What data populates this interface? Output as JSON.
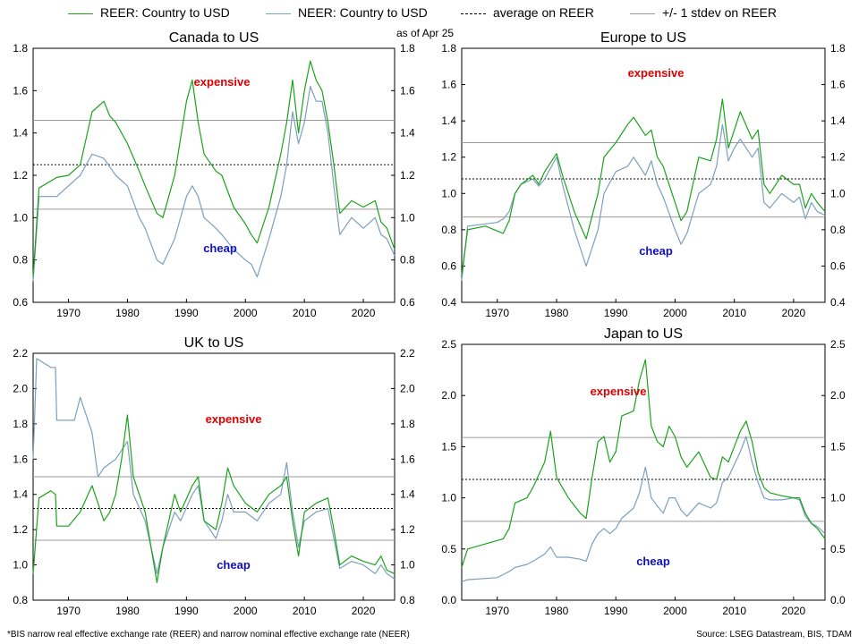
{
  "legend": {
    "items": [
      {
        "label": "REER: Country to USD",
        "color": "#1aa31a",
        "style": "solid"
      },
      {
        "label": "NEER: Country to USD",
        "color": "#7d9fbc",
        "style": "solid"
      },
      {
        "label": "average on REER",
        "color": "#000000",
        "style": "dashed"
      },
      {
        "label": "+/- 1 stdev on REER",
        "color": "#9a9a9a",
        "style": "solid"
      }
    ]
  },
  "annotations": {
    "as_of": "as of Apr 25",
    "expensive": "expensive",
    "cheap": "cheap"
  },
  "footer": {
    "note": "*BIS narrow real effective exchange rate (REER) and narrow nominal effective exchange rate (NEER)",
    "source": "Source: LSEG Datastream, BIS, TDAM"
  },
  "colors": {
    "reer": "#1aa31a",
    "neer": "#7d9fbc",
    "average": "#000000",
    "stdev": "#9a9a9a",
    "expensive": "#e00000",
    "cheap": "#1010c0"
  },
  "chart_data": [
    {
      "type": "line",
      "title": "Canada to US",
      "xlim": [
        1964,
        2025.3
      ],
      "ylim": [
        0.6,
        1.8
      ],
      "x_ticks": [
        1970,
        1980,
        1990,
        2000,
        2010,
        2020
      ],
      "y_ticks": [
        0.6,
        0.8,
        1.0,
        1.2,
        1.4,
        1.6,
        1.8
      ],
      "average": 1.25,
      "stdev_upper": 1.46,
      "stdev_lower": 1.04,
      "series": [
        {
          "name": "REER: Country to USD",
          "x": [
            1964,
            1965,
            1968,
            1970,
            1972,
            1974,
            1976,
            1977,
            1978,
            1980,
            1982,
            1983,
            1985,
            1986,
            1988,
            1990,
            1991,
            1992,
            1993,
            1995,
            1996,
            1998,
            2000,
            2001,
            2002,
            2004,
            2006,
            2007,
            2008,
            2009,
            2010,
            2011,
            2012,
            2013,
            2014,
            2015,
            2016,
            2018,
            2020,
            2022,
            2023,
            2024,
            2025.3
          ],
          "values": [
            0.72,
            1.14,
            1.19,
            1.2,
            1.25,
            1.5,
            1.55,
            1.48,
            1.45,
            1.35,
            1.22,
            1.15,
            1.02,
            1.0,
            1.2,
            1.55,
            1.65,
            1.45,
            1.3,
            1.22,
            1.2,
            1.05,
            0.97,
            0.92,
            0.88,
            1.05,
            1.3,
            1.45,
            1.65,
            1.4,
            1.6,
            1.74,
            1.65,
            1.6,
            1.45,
            1.25,
            1.02,
            1.08,
            1.05,
            1.08,
            0.98,
            0.95,
            0.85
          ]
        },
        {
          "name": "NEER: Country to USD",
          "x": [
            1964,
            1965,
            1968,
            1970,
            1972,
            1974,
            1976,
            1978,
            1980,
            1982,
            1983,
            1985,
            1986,
            1988,
            1990,
            1991,
            1992,
            1993,
            1995,
            1996,
            1998,
            2000,
            2001,
            2002,
            2004,
            2006,
            2007,
            2008,
            2009,
            2010,
            2011,
            2012,
            2013,
            2014,
            2015,
            2016,
            2018,
            2020,
            2022,
            2023,
            2024,
            2025.3
          ],
          "values": [
            0.7,
            1.1,
            1.1,
            1.15,
            1.2,
            1.3,
            1.28,
            1.2,
            1.15,
            1.0,
            0.95,
            0.8,
            0.78,
            0.9,
            1.1,
            1.15,
            1.1,
            1.0,
            0.95,
            0.92,
            0.85,
            0.8,
            0.78,
            0.72,
            0.9,
            1.1,
            1.25,
            1.5,
            1.35,
            1.45,
            1.62,
            1.55,
            1.55,
            1.4,
            1.15,
            0.92,
            1.0,
            0.95,
            1.0,
            0.92,
            0.9,
            0.82
          ]
        }
      ]
    },
    {
      "type": "line",
      "title": "Europe to US",
      "xlim": [
        1964,
        2025.3
      ],
      "ylim": [
        0.4,
        1.8
      ],
      "x_ticks": [
        1970,
        1980,
        1990,
        2000,
        2010,
        2020
      ],
      "y_ticks": [
        0.4,
        0.6,
        0.8,
        1.0,
        1.2,
        1.4,
        1.6,
        1.8
      ],
      "average": 1.08,
      "stdev_upper": 1.28,
      "stdev_lower": 0.87,
      "series": [
        {
          "name": "REER: Country to USD",
          "x": [
            1964,
            1965,
            1968,
            1971,
            1972,
            1973,
            1974,
            1976,
            1977,
            1978,
            1980,
            1981,
            1983,
            1985,
            1987,
            1988,
            1990,
            1992,
            1993,
            1995,
            1996,
            1997,
            1998,
            2000,
            2001,
            2002,
            2004,
            2006,
            2007,
            2008,
            2009,
            2010,
            2011,
            2013,
            2014,
            2015,
            2016,
            2018,
            2020,
            2021,
            2022,
            2023,
            2024,
            2025.3
          ],
          "values": [
            0.55,
            0.8,
            0.82,
            0.78,
            0.85,
            1.0,
            1.05,
            1.1,
            1.05,
            1.12,
            1.22,
            1.1,
            0.9,
            0.75,
            1.0,
            1.2,
            1.28,
            1.38,
            1.42,
            1.32,
            1.35,
            1.2,
            1.15,
            0.95,
            0.85,
            0.9,
            1.2,
            1.18,
            1.3,
            1.52,
            1.25,
            1.35,
            1.45,
            1.3,
            1.35,
            1.05,
            1.0,
            1.1,
            1.05,
            1.05,
            0.92,
            1.0,
            0.95,
            0.9
          ]
        },
        {
          "name": "NEER: Country to USD",
          "x": [
            1964,
            1965,
            1970,
            1971,
            1972,
            1973,
            1974,
            1976,
            1977,
            1978,
            1980,
            1981,
            1983,
            1985,
            1987,
            1988,
            1990,
            1992,
            1993,
            1995,
            1996,
            1997,
            1998,
            2000,
            2001,
            2002,
            2004,
            2006,
            2007,
            2008,
            2009,
            2010,
            2011,
            2013,
            2014,
            2015,
            2016,
            2018,
            2020,
            2021,
            2022,
            2023,
            2024,
            2025.3
          ],
          "values": [
            0.52,
            0.82,
            0.84,
            0.86,
            0.9,
            1.0,
            1.05,
            1.08,
            1.04,
            1.08,
            1.2,
            1.05,
            0.8,
            0.6,
            0.8,
            1.0,
            1.12,
            1.15,
            1.2,
            1.1,
            1.18,
            1.05,
            0.98,
            0.8,
            0.72,
            0.78,
            1.0,
            1.05,
            1.15,
            1.38,
            1.18,
            1.25,
            1.3,
            1.2,
            1.25,
            0.95,
            0.92,
            1.0,
            0.95,
            0.98,
            0.86,
            0.95,
            0.9,
            0.88
          ]
        }
      ]
    },
    {
      "type": "line",
      "title": "UK to US",
      "xlim": [
        1964,
        2025.3
      ],
      "ylim": [
        0.8,
        2.2
      ],
      "x_ticks": [
        1970,
        1980,
        1990,
        2000,
        2010,
        2020
      ],
      "y_ticks": [
        0.8,
        1.0,
        1.2,
        1.4,
        1.6,
        1.8,
        2.0,
        2.2
      ],
      "average": 1.32,
      "stdev_upper": 1.5,
      "stdev_lower": 1.14,
      "series": [
        {
          "name": "REER: Country to USD",
          "x": [
            1964,
            1965,
            1967,
            1967.8,
            1968,
            1970,
            1972,
            1974,
            1976,
            1977,
            1978,
            1979,
            1980,
            1981,
            1983,
            1985,
            1986,
            1988,
            1989,
            1991,
            1992,
            1993,
            1995,
            1996,
            1997,
            1998,
            2000,
            2002,
            2004,
            2006,
            2007,
            2008,
            2009,
            2010,
            2012,
            2014,
            2015,
            2016,
            2018,
            2020,
            2022,
            2023,
            2024,
            2025.3
          ],
          "values": [
            0.95,
            1.38,
            1.42,
            1.4,
            1.22,
            1.22,
            1.3,
            1.45,
            1.25,
            1.3,
            1.4,
            1.6,
            1.85,
            1.5,
            1.3,
            0.9,
            1.1,
            1.4,
            1.3,
            1.45,
            1.5,
            1.25,
            1.2,
            1.35,
            1.55,
            1.45,
            1.35,
            1.3,
            1.4,
            1.45,
            1.5,
            1.25,
            1.05,
            1.3,
            1.35,
            1.38,
            1.2,
            1.0,
            1.05,
            1.02,
            1.0,
            1.05,
            0.97,
            0.95
          ]
        },
        {
          "name": "NEER: Country to USD",
          "x": [
            1964,
            1964.6,
            1967,
            1967.8,
            1968,
            1971,
            1972,
            1974,
            1975,
            1976,
            1978,
            1980,
            1981,
            1983,
            1985,
            1986,
            1988,
            1989,
            1991,
            1992,
            1993,
            1995,
            1996,
            1997,
            1998,
            2000,
            2002,
            2004,
            2006,
            2007,
            2008,
            2009,
            2010,
            2012,
            2014,
            2015,
            2016,
            2018,
            2020,
            2022,
            2023,
            2024,
            2025.3
          ],
          "values": [
            1.6,
            2.17,
            2.12,
            2.12,
            1.82,
            1.82,
            1.95,
            1.75,
            1.5,
            1.55,
            1.6,
            1.7,
            1.4,
            1.25,
            0.95,
            1.1,
            1.3,
            1.25,
            1.4,
            1.45,
            1.25,
            1.15,
            1.25,
            1.4,
            1.3,
            1.3,
            1.25,
            1.35,
            1.4,
            1.58,
            1.3,
            1.1,
            1.25,
            1.3,
            1.32,
            1.15,
            0.98,
            1.02,
            1.0,
            0.95,
            1.0,
            0.95,
            0.92
          ]
        }
      ]
    },
    {
      "type": "line",
      "title": "Japan to US",
      "xlim": [
        1964,
        2025.3
      ],
      "ylim": [
        0.0,
        2.5
      ],
      "x_ticks": [
        1970,
        1980,
        1990,
        2000,
        2010,
        2020
      ],
      "y_ticks": [
        0.0,
        0.5,
        1.0,
        1.5,
        2.0,
        2.5
      ],
      "average": 1.18,
      "stdev_upper": 1.59,
      "stdev_lower": 0.77,
      "series": [
        {
          "name": "REER: Country to USD",
          "x": [
            1964,
            1965,
            1968,
            1971,
            1972,
            1973,
            1975,
            1976,
            1978,
            1979,
            1980,
            1982,
            1984,
            1985,
            1986,
            1987,
            1988,
            1989,
            1990,
            1991,
            1993,
            1994,
            1995,
            1996,
            1997,
            1998,
            1999,
            2000,
            2001,
            2002,
            2004,
            2006,
            2007,
            2008,
            2009,
            2011,
            2012,
            2013,
            2014,
            2015,
            2016,
            2018,
            2020,
            2021,
            2022,
            2023,
            2024,
            2025.3
          ],
          "values": [
            0.32,
            0.5,
            0.55,
            0.6,
            0.7,
            0.95,
            1.0,
            1.1,
            1.35,
            1.65,
            1.2,
            1.0,
            0.85,
            0.8,
            1.2,
            1.55,
            1.6,
            1.35,
            1.45,
            1.8,
            1.85,
            2.15,
            2.35,
            1.7,
            1.55,
            1.5,
            1.7,
            1.6,
            1.4,
            1.3,
            1.45,
            1.2,
            1.18,
            1.4,
            1.35,
            1.65,
            1.75,
            1.55,
            1.25,
            1.1,
            1.05,
            1.02,
            1.0,
            1.0,
            0.85,
            0.75,
            0.7,
            0.6
          ]
        },
        {
          "name": "NEER: Country to USD",
          "x": [
            1964,
            1965,
            1970,
            1971,
            1972,
            1973,
            1975,
            1976,
            1978,
            1979,
            1980,
            1982,
            1984,
            1985,
            1986,
            1987,
            1988,
            1989,
            1990,
            1991,
            1993,
            1994,
            1995,
            1996,
            1997,
            1998,
            1999,
            2000,
            2001,
            2002,
            2004,
            2006,
            2007,
            2008,
            2009,
            2011,
            2012,
            2013,
            2014,
            2015,
            2016,
            2018,
            2020,
            2021,
            2022,
            2023,
            2024,
            2025.3
          ],
          "values": [
            0.18,
            0.2,
            0.22,
            0.25,
            0.28,
            0.32,
            0.35,
            0.38,
            0.45,
            0.52,
            0.42,
            0.42,
            0.4,
            0.38,
            0.55,
            0.65,
            0.7,
            0.65,
            0.7,
            0.8,
            0.9,
            1.05,
            1.3,
            1.0,
            0.92,
            0.85,
            1.0,
            1.0,
            0.88,
            0.82,
            0.95,
            0.9,
            0.95,
            1.15,
            1.2,
            1.45,
            1.6,
            1.35,
            1.15,
            1.0,
            0.98,
            0.98,
            1.0,
            0.98,
            0.82,
            0.75,
            0.72,
            0.65
          ]
        }
      ]
    }
  ]
}
